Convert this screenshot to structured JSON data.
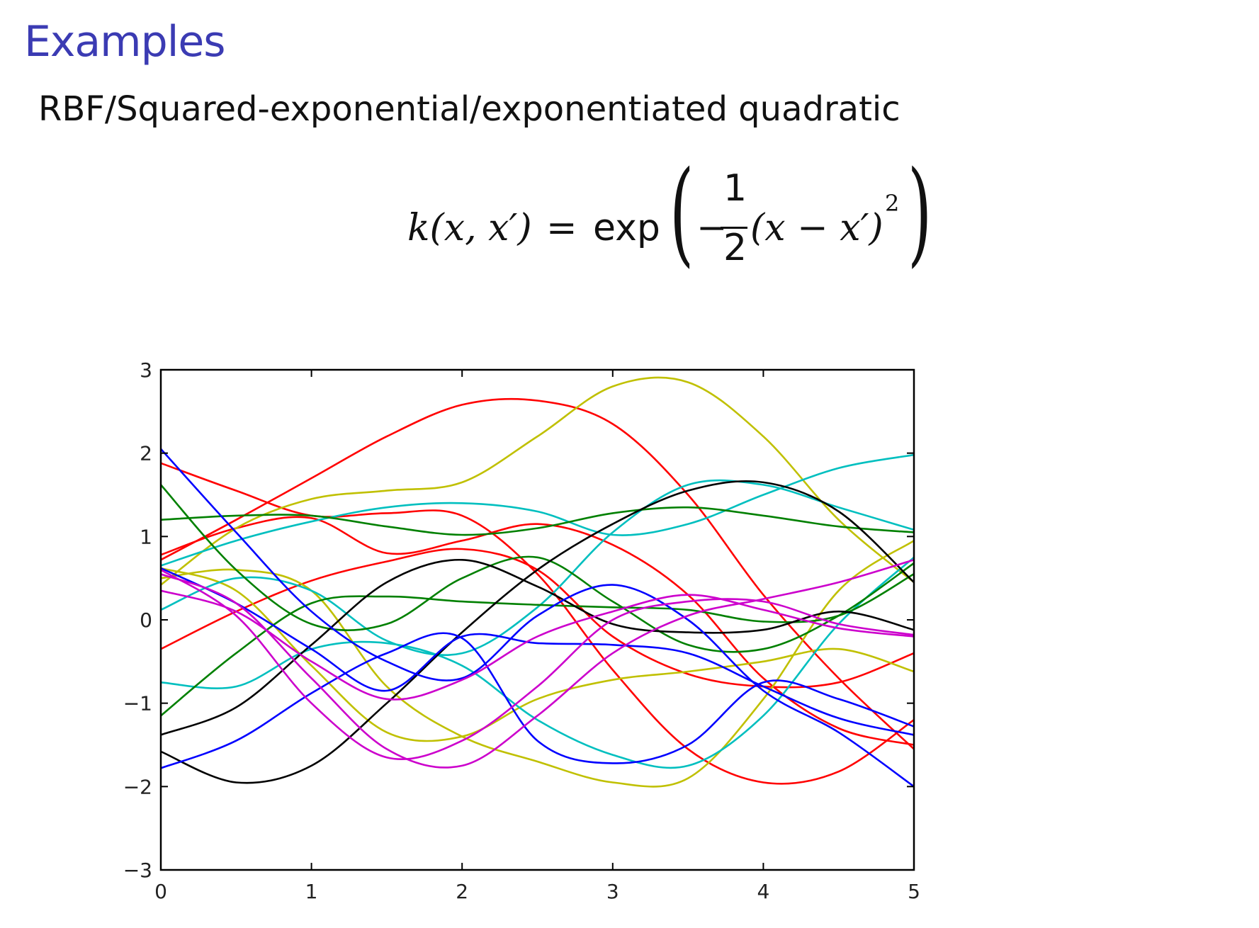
{
  "slide": {
    "title": "Examples",
    "subtitle": "RBF/Squared-exponential/exponentiated quadratic"
  },
  "formula": {
    "lhs": "k(x, x′)",
    "equals": "=",
    "func": "exp",
    "minus": "−",
    "numerator": "1",
    "denominator": "2",
    "body": "(x − x′)",
    "exponent": "2"
  },
  "chart_data": {
    "type": "line",
    "xlim": [
      0,
      5
    ],
    "ylim": [
      -3,
      3
    ],
    "x_ticks": [
      "0",
      "1",
      "2",
      "3",
      "4",
      "5"
    ],
    "y_ticks": [
      "3",
      "2",
      "1",
      "0",
      "−1",
      "−2",
      "−3"
    ],
    "grid": false,
    "legend": "none",
    "x": [
      0,
      0.5,
      1,
      1.5,
      2,
      2.5,
      3,
      3.5,
      4,
      4.5,
      5
    ],
    "series": [
      {
        "color": "#ff0000",
        "values": [
          0.72,
          1.2,
          1.7,
          2.2,
          2.58,
          2.63,
          2.35,
          1.5,
          0.3,
          -0.7,
          -1.55
        ]
      },
      {
        "color": "#ff0000",
        "values": [
          1.88,
          1.55,
          1.25,
          1.28,
          1.25,
          0.55,
          -0.6,
          -1.55,
          -1.95,
          -1.82,
          -1.2
        ]
      },
      {
        "color": "#ff0000",
        "values": [
          0.78,
          1.1,
          1.22,
          0.8,
          0.95,
          1.15,
          0.9,
          0.3,
          -0.7,
          -1.3,
          -1.5
        ]
      },
      {
        "color": "#ff0000",
        "values": [
          -0.35,
          0.1,
          0.47,
          0.7,
          0.85,
          0.6,
          -0.2,
          -0.65,
          -0.8,
          -0.75,
          -0.4
        ]
      },
      {
        "color": "#c0c000",
        "values": [
          0.42,
          1.1,
          1.45,
          1.55,
          1.65,
          2.2,
          2.8,
          2.85,
          2.2,
          1.2,
          0.45
        ]
      },
      {
        "color": "#c0c000",
        "values": [
          0.5,
          0.6,
          0.35,
          -0.8,
          -1.4,
          -1.7,
          -1.95,
          -1.9,
          -0.95,
          0.35,
          0.95
        ]
      },
      {
        "color": "#c0c000",
        "values": [
          0.62,
          0.35,
          -0.55,
          -1.35,
          -1.4,
          -0.95,
          -0.72,
          -0.62,
          -0.5,
          -0.35,
          -0.62
        ]
      },
      {
        "color": "#00bfbf",
        "values": [
          0.65,
          0.95,
          1.18,
          1.35,
          1.4,
          1.3,
          1.02,
          1.15,
          1.5,
          1.82,
          1.98
        ]
      },
      {
        "color": "#00bfbf",
        "values": [
          0.12,
          0.5,
          0.35,
          -0.25,
          -0.4,
          0.15,
          1.05,
          1.62,
          1.62,
          1.35,
          1.08
        ]
      },
      {
        "color": "#00bfbf",
        "values": [
          -0.75,
          -0.8,
          -0.35,
          -0.28,
          -0.55,
          -1.2,
          -1.62,
          -1.75,
          -1.15,
          -0.05,
          0.75
        ]
      },
      {
        "color": "#008000",
        "values": [
          1.2,
          1.25,
          1.25,
          1.12,
          1.02,
          1.1,
          1.28,
          1.35,
          1.25,
          1.12,
          1.05
        ]
      },
      {
        "color": "#008000",
        "values": [
          1.62,
          0.6,
          -0.05,
          -0.05,
          0.5,
          0.75,
          0.22,
          -0.3,
          -0.35,
          0.05,
          0.68
        ]
      },
      {
        "color": "#008000",
        "values": [
          -1.15,
          -0.4,
          0.2,
          0.28,
          0.22,
          0.18,
          0.15,
          0.12,
          -0.02,
          0.05,
          0.55
        ]
      },
      {
        "color": "#000000",
        "values": [
          -1.38,
          -1.05,
          -0.3,
          0.45,
          0.72,
          0.4,
          -0.05,
          -0.15,
          -0.12,
          0.1,
          -0.12
        ]
      },
      {
        "color": "#000000",
        "values": [
          -1.58,
          -1.95,
          -1.75,
          -1.0,
          -0.15,
          0.6,
          1.15,
          1.55,
          1.65,
          1.3,
          0.45
        ]
      },
      {
        "color": "#0000ff",
        "values": [
          2.05,
          1.05,
          0.1,
          -0.5,
          -0.7,
          0.05,
          0.42,
          0.0,
          -0.85,
          -1.35,
          -2.0
        ]
      },
      {
        "color": "#0000ff",
        "values": [
          0.62,
          0.2,
          -0.35,
          -0.85,
          -0.2,
          -0.28,
          -0.3,
          -0.4,
          -0.8,
          -1.18,
          -1.38
        ]
      },
      {
        "color": "#0000ff",
        "values": [
          -1.78,
          -1.45,
          -0.88,
          -0.4,
          -0.22,
          -1.45,
          -1.72,
          -1.5,
          -0.75,
          -0.95,
          -1.28
        ]
      },
      {
        "color": "#cc00cc",
        "values": [
          0.35,
          0.1,
          -0.5,
          -0.95,
          -0.72,
          -0.2,
          0.1,
          0.3,
          0.12,
          -0.1,
          -0.2
        ]
      },
      {
        "color": "#cc00cc",
        "values": [
          0.6,
          0.05,
          -1.0,
          -1.65,
          -1.45,
          -0.8,
          0.0,
          0.22,
          0.22,
          -0.05,
          -0.18
        ]
      },
      {
        "color": "#cc00cc",
        "values": [
          0.55,
          0.2,
          -0.7,
          -1.55,
          -1.75,
          -1.15,
          -0.4,
          0.05,
          0.25,
          0.45,
          0.72
        ]
      }
    ]
  }
}
